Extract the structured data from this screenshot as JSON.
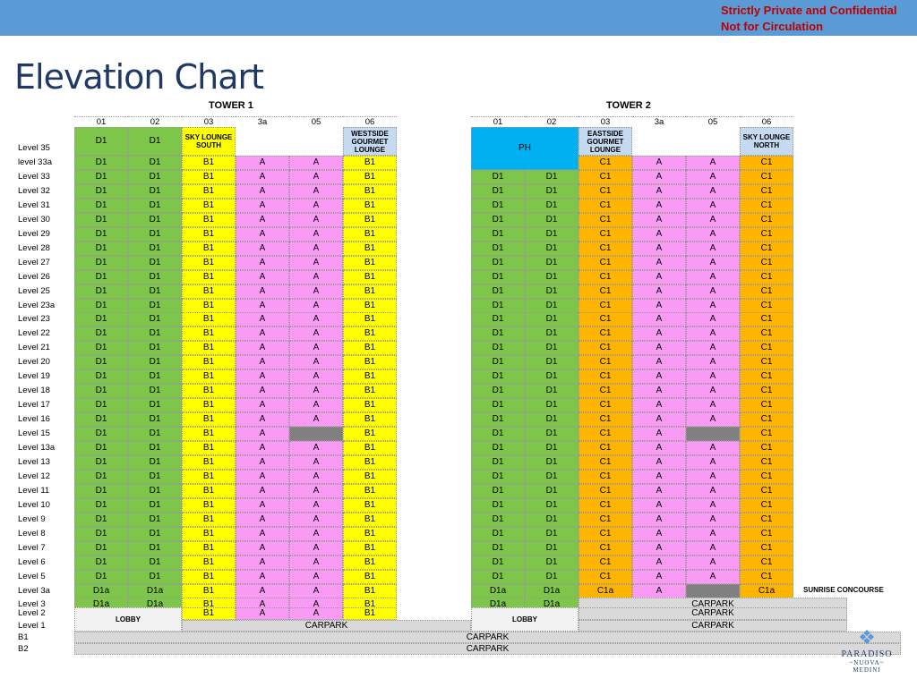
{
  "header": {
    "confidential_line1": "Strictly Private and Confidential",
    "confidential_line2": "Not for Circulation"
  },
  "title": "Elevation Chart",
  "colors": {
    "topbar": "#5b9bd5",
    "D": "#7ec64a",
    "B": "#ffff00",
    "A": "#f99bf5",
    "C": "#ffb400",
    "PH": "#00b0f0",
    "lounge": "#c5d9f1",
    "grey": "#808080",
    "carpark": "#d9d9d9",
    "lobby": "#f2f2f2"
  },
  "tower1": {
    "label": "TOWER 1",
    "units": [
      "01",
      "02",
      "03",
      "3a",
      "05",
      "06"
    ],
    "lounge_03": "SKY LOUNGE SOUTH",
    "lounge_06": "WESTSIDE GOURMET LOUNGE"
  },
  "tower2": {
    "label": "TOWER 2",
    "units": [
      "01",
      "02",
      "03",
      "3a",
      "05",
      "06"
    ],
    "ph": "PH",
    "lounge_03": "EASTSIDE GOURMET LOUNGE",
    "lounge_06": "SKY LOUNGE NORTH"
  },
  "levels": [
    "Level 35",
    "level 33a",
    "Level 33",
    "Level 32",
    "Level 31",
    "Level 30",
    "Level 29",
    "Level 28",
    "Level 27",
    "Level 26",
    "Level 25",
    "Level 23a",
    "Level 23",
    "Level 22",
    "Level 21",
    "Level 20",
    "Level 19",
    "Level 18",
    "Level 17",
    "Level 16",
    "Level 15",
    "Level 13a",
    "Level 13",
    "Level 12",
    "Level 11",
    "Level 10",
    "Level 9",
    "Level 8",
    "Level 7",
    "Level 6",
    "Level 5",
    "Level 3a",
    "Level 3",
    "Level 2",
    "Level 1",
    "B1",
    "B2"
  ],
  "unit_types": {
    "D1": "D1",
    "D1a": "D1a",
    "B1": "B1",
    "A": "A",
    "C1": "C1",
    "C1a": "C1a"
  },
  "podium": {
    "lobby": "LOBBY",
    "carpark": "CARPARK",
    "sunrise": "SUNRISE CONCOURSE"
  },
  "logo": {
    "brand": "PARADISO",
    "sub1": "~NUOVA~",
    "sub2": "MEDINI"
  }
}
